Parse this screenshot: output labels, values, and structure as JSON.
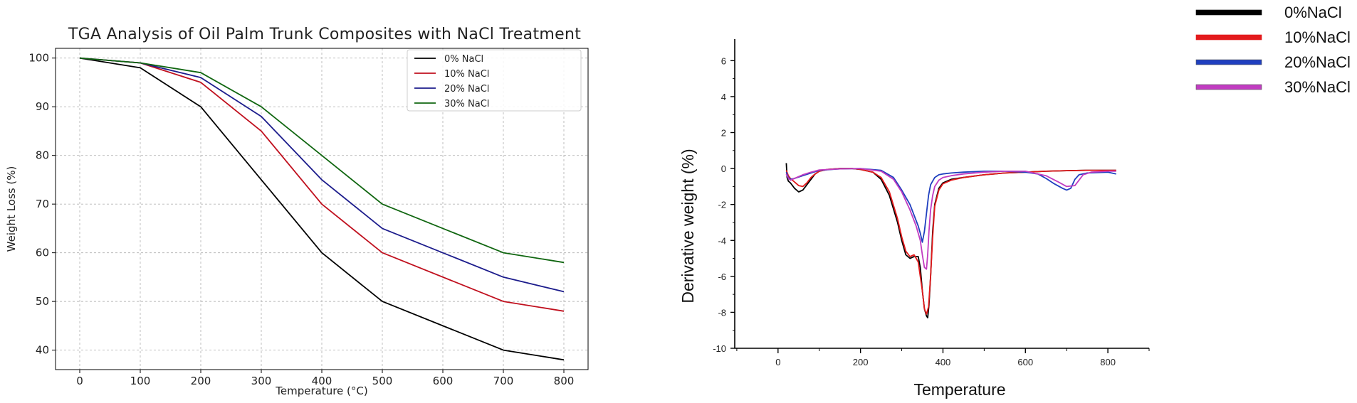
{
  "chart_data": [
    {
      "type": "line",
      "title": "TGA Analysis of Oil Palm Trunk Composites with NaCl Treatment",
      "xlabel": "Temperature (°C)",
      "ylabel": "Weight Loss (%)",
      "xlim": [
        -40,
        840
      ],
      "ylim": [
        36,
        102
      ],
      "xticks": [
        0,
        100,
        200,
        300,
        400,
        500,
        600,
        700,
        800
      ],
      "yticks": [
        40,
        50,
        60,
        70,
        80,
        90,
        100
      ],
      "grid": true,
      "legend_position": "top-right",
      "x": [
        0,
        100,
        200,
        300,
        400,
        500,
        700,
        800
      ],
      "series": [
        {
          "name": "0% NaCl",
          "color": "#000000",
          "values": [
            100,
            98,
            90,
            75,
            60,
            50,
            40,
            38
          ]
        },
        {
          "name": "10% NaCl",
          "color": "#c0101e",
          "values": [
            100,
            99,
            95,
            85,
            70,
            60,
            50,
            48
          ]
        },
        {
          "name": "20% NaCl",
          "color": "#1c1c8c",
          "values": [
            100,
            99,
            96,
            88,
            75,
            65,
            55,
            52
          ]
        },
        {
          "name": "30% NaCl",
          "color": "#106610",
          "values": [
            100,
            99,
            97,
            90,
            80,
            70,
            60,
            58
          ]
        }
      ]
    },
    {
      "type": "line",
      "title": "",
      "xlabel": "Temperature",
      "ylabel": "Derivative weight (%)",
      "xlim": [
        -105,
        900
      ],
      "ylim": [
        -10,
        7.2
      ],
      "xticks": [
        0,
        200,
        400,
        600,
        800
      ],
      "yticks": [
        -10,
        -8,
        -6,
        -4,
        -2,
        0,
        2,
        4,
        6
      ],
      "grid": false,
      "legend_position": "outside-right",
      "series": [
        {
          "name": "0%NaCl",
          "color": "#000000",
          "x": [
            20,
            22,
            25,
            30,
            40,
            50,
            60,
            70,
            80,
            90,
            100,
            120,
            150,
            180,
            200,
            230,
            250,
            270,
            290,
            300,
            310,
            320,
            330,
            340,
            345,
            350,
            355,
            360,
            363,
            366,
            370,
            375,
            380,
            390,
            400,
            420,
            450,
            500,
            550,
            600,
            650,
            700,
            750,
            800,
            820
          ],
          "y": [
            0.3,
            -0.5,
            -0.7,
            -0.8,
            -1.1,
            -1.3,
            -1.2,
            -0.9,
            -0.6,
            -0.3,
            -0.15,
            -0.05,
            0,
            0,
            -0.05,
            -0.2,
            -0.6,
            -1.5,
            -3.0,
            -4.0,
            -4.8,
            -5.0,
            -4.9,
            -4.9,
            -5.5,
            -6.8,
            -7.8,
            -8.2,
            -8.3,
            -7.6,
            -6.0,
            -3.5,
            -2.0,
            -1.1,
            -0.8,
            -0.6,
            -0.5,
            -0.35,
            -0.25,
            -0.2,
            -0.15,
            -0.12,
            -0.1,
            -0.1,
            -0.1
          ]
        },
        {
          "name": "10%NaCl",
          "color": "#e31a1c",
          "x": [
            20,
            25,
            30,
            40,
            50,
            60,
            70,
            80,
            90,
            100,
            120,
            150,
            180,
            200,
            230,
            250,
            270,
            290,
            300,
            310,
            320,
            330,
            340,
            350,
            355,
            360,
            365,
            370,
            375,
            380,
            390,
            400,
            420,
            450,
            500,
            550,
            600,
            650,
            700,
            750,
            800,
            820
          ],
          "y": [
            -0.1,
            -0.4,
            -0.55,
            -0.75,
            -0.95,
            -1.0,
            -0.8,
            -0.5,
            -0.3,
            -0.15,
            -0.05,
            0,
            0,
            -0.05,
            -0.2,
            -0.5,
            -1.3,
            -2.8,
            -3.8,
            -4.6,
            -4.9,
            -4.8,
            -5.2,
            -6.8,
            -7.8,
            -8.1,
            -7.7,
            -6.0,
            -3.8,
            -2.1,
            -1.2,
            -0.85,
            -0.65,
            -0.5,
            -0.35,
            -0.25,
            -0.2,
            -0.15,
            -0.12,
            -0.1,
            -0.1,
            -0.1
          ]
        },
        {
          "name": "20%NaCl",
          "color": "#1f3fbf",
          "x": [
            20,
            25,
            30,
            40,
            60,
            80,
            100,
            150,
            200,
            250,
            280,
            300,
            320,
            330,
            340,
            345,
            350,
            355,
            360,
            365,
            370,
            380,
            390,
            400,
            420,
            450,
            500,
            550,
            600,
            630,
            650,
            670,
            690,
            700,
            710,
            720,
            730,
            750,
            800,
            820
          ],
          "y": [
            -0.2,
            -0.5,
            -0.6,
            -0.55,
            -0.4,
            -0.25,
            -0.1,
            -0.02,
            0,
            -0.1,
            -0.5,
            -1.2,
            -2.0,
            -2.6,
            -3.2,
            -3.6,
            -4.1,
            -3.5,
            -2.5,
            -1.5,
            -0.9,
            -0.5,
            -0.35,
            -0.3,
            -0.25,
            -0.2,
            -0.15,
            -0.15,
            -0.2,
            -0.3,
            -0.55,
            -0.85,
            -1.1,
            -1.2,
            -1.1,
            -0.6,
            -0.35,
            -0.25,
            -0.2,
            -0.3
          ]
        },
        {
          "name": "30%NaCl",
          "color": "#c13cc1",
          "x": [
            20,
            25,
            30,
            40,
            60,
            80,
            100,
            150,
            200,
            250,
            280,
            300,
            320,
            335,
            345,
            350,
            355,
            360,
            363,
            366,
            370,
            375,
            380,
            390,
            400,
            420,
            450,
            500,
            550,
            600,
            650,
            680,
            700,
            720,
            740,
            760,
            800,
            820
          ],
          "y": [
            -0.3,
            -0.55,
            -0.65,
            -0.55,
            -0.35,
            -0.2,
            -0.08,
            -0.02,
            0,
            -0.15,
            -0.6,
            -1.3,
            -2.3,
            -3.2,
            -4.0,
            -4.8,
            -5.5,
            -5.6,
            -4.8,
            -3.5,
            -2.3,
            -1.5,
            -1.0,
            -0.65,
            -0.5,
            -0.4,
            -0.3,
            -0.2,
            -0.15,
            -0.15,
            -0.4,
            -0.75,
            -1.0,
            -0.95,
            -0.35,
            -0.2,
            -0.15,
            -0.15
          ]
        }
      ]
    }
  ]
}
